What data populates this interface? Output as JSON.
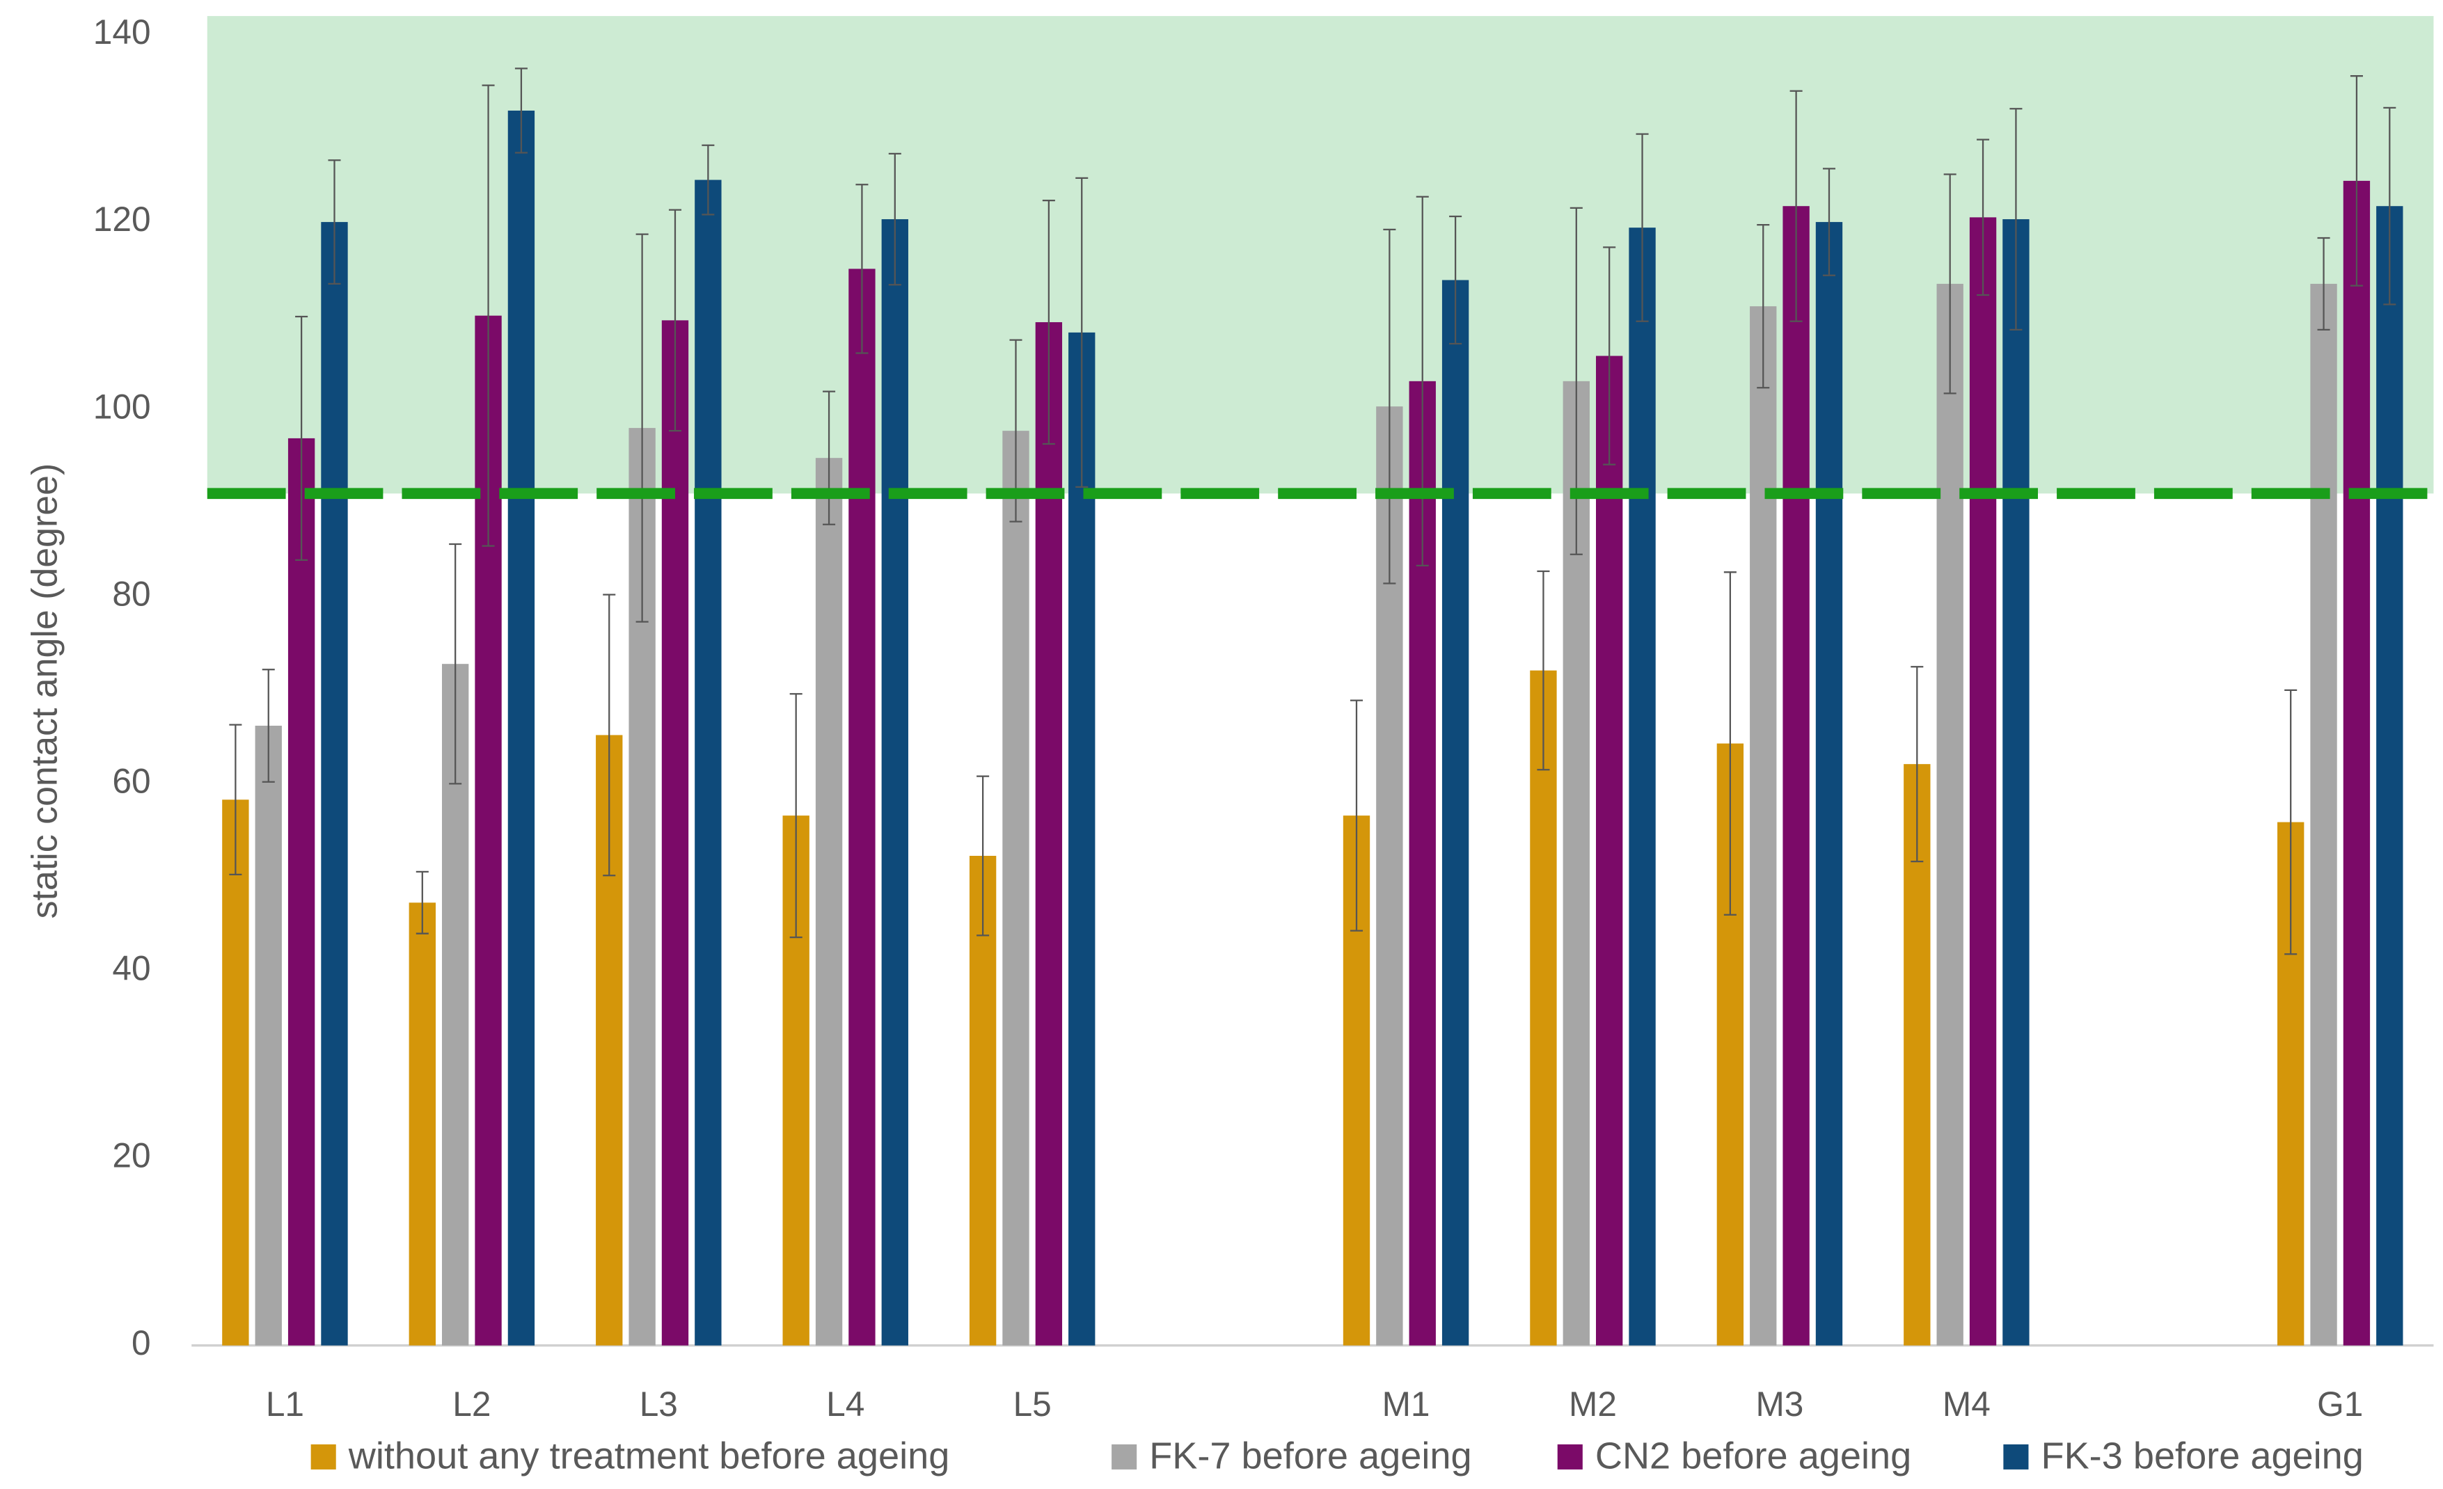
{
  "chart_data": {
    "type": "bar",
    "y_label": "static contact angle (degree)",
    "categories": [
      "L1",
      "L2",
      "L3",
      "L4",
      "L5",
      null,
      "M1",
      "M2",
      "M3",
      "M4",
      null,
      "G1"
    ],
    "series": [
      {
        "name": "without any treatment before ageing",
        "color": "#d4960a",
        "values": [
          58.3,
          47.3,
          65.2,
          56.6,
          52.3,
          null,
          56.6,
          72.1,
          64.3,
          62.1,
          null,
          55.9
        ],
        "errors": [
          8,
          3.3,
          15,
          13,
          8.5,
          null,
          12.3,
          10.6,
          18.3,
          10.4,
          null,
          14.1
        ]
      },
      {
        "name": "FK-7 before ageing",
        "color": "#a6a6a6",
        "values": [
          66.2,
          72.8,
          98,
          94.8,
          97.7,
          null,
          100.3,
          103,
          111,
          113.4,
          null,
          113.4
        ],
        "errors": [
          6,
          12.8,
          20.7,
          7.1,
          9.7,
          null,
          18.9,
          18.5,
          8.7,
          11.7,
          null,
          4.9
        ]
      },
      {
        "name": "CN2 before ageing",
        "color": "#7b0a68",
        "values": [
          96.9,
          110,
          109.5,
          115,
          109.3,
          null,
          103,
          105.7,
          121.7,
          120.5,
          null,
          124.4
        ],
        "errors": [
          13,
          24.6,
          11.8,
          9,
          13,
          null,
          19.7,
          11.6,
          12.3,
          8.3,
          null,
          11.2
        ]
      },
      {
        "name": "FK-3 before ageing",
        "color": "#0e4a7a",
        "values": [
          120,
          131.9,
          124.5,
          120.3,
          108.2,
          null,
          113.8,
          119.4,
          120,
          120.3,
          null,
          121.7
        ],
        "errors": [
          6.6,
          4.5,
          3.7,
          7,
          16.5,
          null,
          6.8,
          10,
          5.7,
          11.8,
          null,
          10.5
        ]
      }
    ],
    "ylim": [
      0,
      142
    ],
    "yticks": [
      0,
      20,
      40,
      60,
      80,
      100,
      120,
      140
    ],
    "threshold": 91,
    "shaded_range": [
      91,
      142
    ],
    "shade_color": "#cdebd3",
    "threshold_color": "#1a9e1a",
    "legend": "bottom"
  }
}
